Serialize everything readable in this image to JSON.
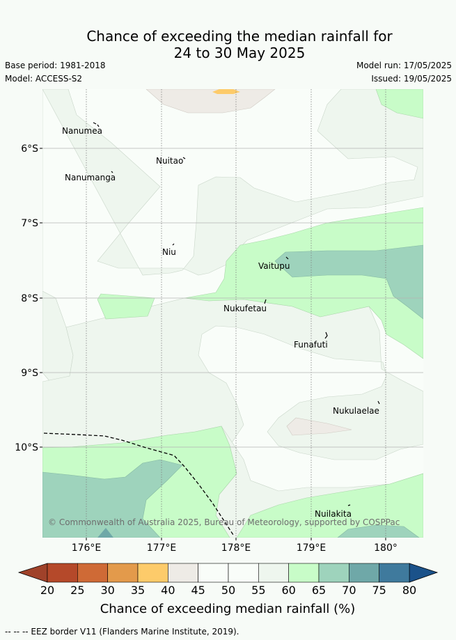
{
  "title_line1": "Chance of exceeding the median rainfall for",
  "title_line2": "24 to 30 May 2025",
  "base_period": "Base period: 1981-2018",
  "model": "Model: ACCESS-S2",
  "model_run": "Model run: 17/05/2025",
  "issued": "Issued: 19/05/2025",
  "map": {
    "lon_ticks": [
      "176°E",
      "177°E",
      "178°E",
      "179°E",
      "180°"
    ],
    "lat_ticks": [
      "6°S",
      "7°S",
      "8°S",
      "9°S",
      "10°S"
    ],
    "places": [
      "Nanumea",
      "Nuitao",
      "Nanumanga",
      "Niu",
      "Vaitupu",
      "Nukufetau",
      "Funafuti",
      "Nukulaelae",
      "Nuilakita"
    ],
    "copyright": "© Commonwealth of Australia 2025, Bureau of Meteorology, supported by COSPPac"
  },
  "colorbar": {
    "labels": [
      "20",
      "25",
      "30",
      "35",
      "40",
      "45",
      "50",
      "55",
      "60",
      "65",
      "70",
      "75",
      "80"
    ],
    "colors": [
      "#b5492a",
      "#cf6a36",
      "#e39a4b",
      "#fdcb6a",
      "#eeebe6",
      "#f9fdf9",
      "#f9fdf9",
      "#eef6ee",
      "#c8fcc8",
      "#9ed3bc",
      "#6fa8a8",
      "#3f7a9d"
    ],
    "under_color": "#a0422a",
    "over_color": "#1b528a",
    "title": "Chance of exceeding median rainfall (%)"
  },
  "legend_note": "--  --  -- EEZ border V11 (Flanders Marine Institute, 2019)."
}
